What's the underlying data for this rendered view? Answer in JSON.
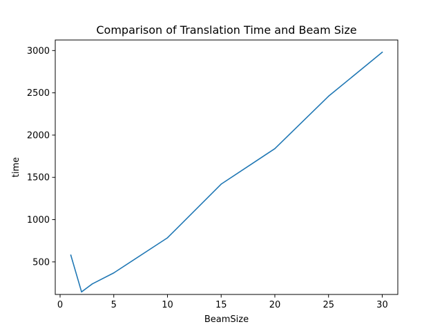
{
  "chart_data": {
    "type": "line",
    "title": "Comparison of Translation Time and Beam Size",
    "xlabel": "BeamSize",
    "ylabel": "time",
    "xlim": [
      -0.45,
      31.45
    ],
    "ylim": [
      115,
      3125
    ],
    "xticks": [
      0,
      5,
      10,
      15,
      20,
      25,
      30
    ],
    "yticks": [
      500,
      1000,
      1500,
      2000,
      2500,
      3000
    ],
    "grid": false,
    "series": [
      {
        "color": "#1f77b4",
        "x": [
          1,
          2,
          3,
          5,
          10,
          15,
          20,
          25,
          30
        ],
        "y": [
          580,
          145,
          240,
          370,
          785,
          1420,
          1840,
          2460,
          2980
        ]
      }
    ]
  }
}
